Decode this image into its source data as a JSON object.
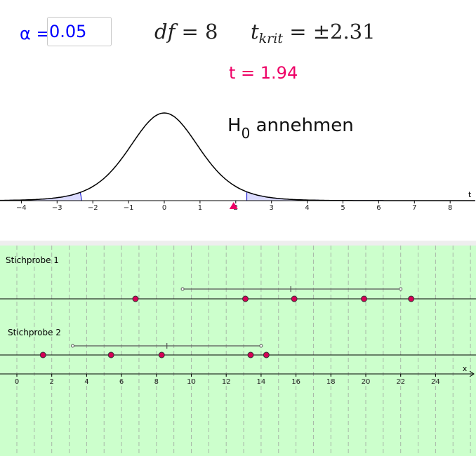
{
  "alpha": {
    "label": "α =",
    "value": "0.05"
  },
  "df": {
    "symbol": "df",
    "equals": "= 8"
  },
  "tcrit": {
    "symbol": "t",
    "sub": "krit",
    "equals": "= ±2.31"
  },
  "t_value": "t = 1.94",
  "decision": {
    "h": "H",
    "sub": "0",
    "text": "annehmen"
  },
  "colors": {
    "accent": "#0000ff",
    "t_marker": "#ee0066",
    "point": "#d40055",
    "panel_bg": "#ccffcc",
    "tail_fill": "#ccccff"
  },
  "chart_data": [
    {
      "type": "line",
      "title": "",
      "xlabel": "t",
      "ylabel": "",
      "xlim": [
        -4.6,
        8.7
      ],
      "x_ticks": [
        -4,
        -3,
        -2,
        -1,
        0,
        1,
        2,
        3,
        4,
        5,
        6,
        7,
        8
      ],
      "x_tick_labels": [
        "−4",
        "−3",
        "−2",
        "−1",
        "0",
        "1",
        "2",
        "3",
        "4",
        "5",
        "6",
        "7",
        "8"
      ],
      "series": [
        {
          "kind": "t-density",
          "df": 8
        }
      ],
      "shaded_tails": [
        -2.31,
        2.31
      ],
      "t_marker": 1.94
    },
    {
      "type": "scatter",
      "title": "",
      "xlabel": "x",
      "xlim": [
        -1,
        26.2
      ],
      "x_ticks": [
        0,
        2,
        4,
        6,
        8,
        10,
        12,
        14,
        16,
        18,
        20,
        22,
        24
      ],
      "x_tick_labels": [
        "0",
        "2",
        "4",
        "6",
        "8",
        "10",
        "12",
        "14",
        "16",
        "18",
        "20",
        "22",
        "24"
      ],
      "grid": true,
      "samples": [
        {
          "name": "Stichprobe 1",
          "points": [
            6.8,
            13.1,
            15.9,
            19.9,
            22.6
          ],
          "interval": [
            9.5,
            22.0
          ],
          "mean": 15.7
        },
        {
          "name": "Stichprobe 2",
          "points": [
            1.5,
            5.4,
            8.3,
            13.4,
            14.3
          ],
          "interval": [
            3.2,
            14.0
          ],
          "mean": 8.6
        }
      ]
    }
  ]
}
